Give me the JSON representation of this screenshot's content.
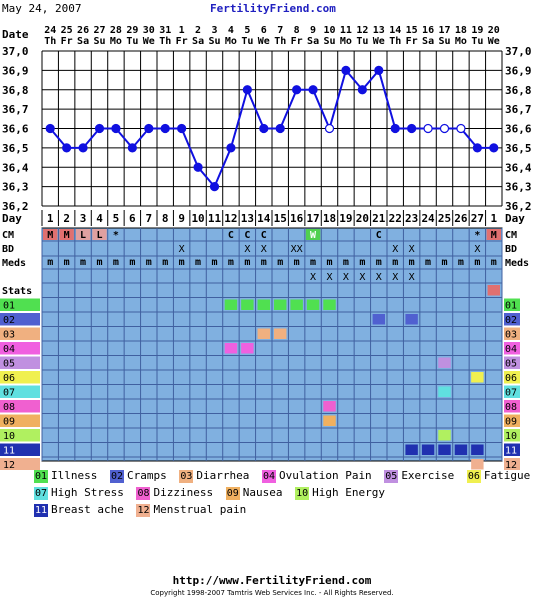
{
  "header": {
    "date": "May 24, 2007",
    "site": "FertilityFriend.com"
  },
  "footer": {
    "url": "http://www.FertilityFriend.com",
    "copyright": "Copyright 1998-2007 Tamtris Web Services Inc. - All Rights Reserved."
  },
  "row_labels": {
    "date": "Date",
    "day": "Day",
    "cm": "CM",
    "bd": "BD",
    "meds": "Meds",
    "stats": "Stats"
  },
  "colors": {
    "grid_bg": "#80b0e0",
    "line": "#1010e0",
    "point": "#1010e0"
  },
  "chart_data": {
    "type": "line",
    "title": "",
    "dates": [
      "24",
      "25",
      "26",
      "27",
      "28",
      "29",
      "30",
      "31",
      "1",
      "2",
      "3",
      "4",
      "5",
      "6",
      "7",
      "8",
      "9",
      "10",
      "11",
      "12",
      "13",
      "14",
      "15",
      "16",
      "17",
      "18",
      "19",
      "20"
    ],
    "weekdays": [
      "Th",
      "Fr",
      "Sa",
      "Su",
      "Mo",
      "Tu",
      "We",
      "Th",
      "Fr",
      "Sa",
      "Su",
      "Mo",
      "Tu",
      "We",
      "Th",
      "Fr",
      "Sa",
      "Su",
      "Mo",
      "Tu",
      "We",
      "Th",
      "Fr",
      "Sa",
      "Su",
      "Mo",
      "Tu",
      "We"
    ],
    "days": [
      "1",
      "2",
      "3",
      "4",
      "5",
      "6",
      "7",
      "8",
      "9",
      "10",
      "11",
      "12",
      "13",
      "14",
      "15",
      "16",
      "17",
      "18",
      "19",
      "20",
      "21",
      "22",
      "23",
      "24",
      "25",
      "26",
      "27",
      "1"
    ],
    "temps": [
      36.6,
      36.5,
      36.5,
      36.6,
      36.6,
      36.5,
      36.6,
      36.6,
      36.6,
      36.4,
      36.3,
      36.5,
      36.8,
      36.6,
      36.6,
      36.8,
      36.8,
      36.6,
      36.9,
      36.8,
      36.9,
      36.6,
      36.6,
      36.6,
      36.6,
      36.6,
      36.5,
      36.5
    ],
    "hollow": [
      17,
      23,
      24,
      25
    ],
    "ylim": [
      36.2,
      37.0
    ],
    "yticks": [
      "37,0",
      "36,9",
      "36,8",
      "36,7",
      "36,6",
      "36,5",
      "36,4",
      "36,3",
      "36,2"
    ],
    "cm": [
      "M",
      "M",
      "L",
      "L",
      "*",
      "",
      "",
      "",
      "",
      "",
      "",
      "C",
      "C",
      "C",
      "",
      "",
      "W",
      "",
      "",
      "",
      "C",
      "",
      "",
      "",
      "",
      "",
      "*",
      "M"
    ],
    "bd": [
      "",
      "",
      "",
      "",
      "",
      "",
      "",
      "",
      "X",
      "",
      "",
      "",
      "X",
      "X",
      "",
      "XX",
      "",
      "",
      "",
      "",
      "",
      "X",
      "X",
      "",
      "",
      "",
      "X",
      ""
    ],
    "meds_top": [
      "m",
      "m",
      "m",
      "m",
      "m",
      "m",
      "m",
      "m",
      "m",
      "m",
      "m",
      "m",
      "m",
      "m",
      "m",
      "m",
      "m",
      "m",
      "m",
      "m",
      "m",
      "m",
      "m",
      "m",
      "m",
      "m",
      "m",
      "m"
    ],
    "meds_bottom": [
      "",
      "",
      "",
      "",
      "",
      "",
      "",
      "",
      "",
      "",
      "",
      "",
      "",
      "",
      "",
      "",
      "X",
      "X",
      "X",
      "X",
      "X",
      "X",
      "X",
      "",
      "",
      "",
      "",
      ""
    ],
    "stats_cells": [
      {
        "row": 0,
        "days": [
          27
        ]
      },
      {
        "row": 1,
        "days": [
          11,
          12,
          13,
          14,
          15,
          16,
          17
        ]
      },
      {
        "row": 2,
        "days": [
          20,
          22
        ]
      },
      {
        "row": 3,
        "days": [
          13,
          14
        ]
      },
      {
        "row": 4,
        "days": [
          11,
          12
        ]
      },
      {
        "row": 5,
        "days": [
          24
        ]
      },
      {
        "row": 6,
        "days": [
          26
        ]
      },
      {
        "row": 7,
        "days": [
          24
        ]
      },
      {
        "row": 8,
        "days": [
          17
        ]
      },
      {
        "row": 9,
        "days": [
          17
        ]
      },
      {
        "row": 10,
        "days": [
          24
        ]
      },
      {
        "row": 11,
        "days": [
          22,
          23,
          24,
          25,
          26
        ]
      },
      {
        "row": 12,
        "days": [
          26
        ]
      }
    ],
    "stats_rows": [
      "",
      "01",
      "02",
      "03",
      "04",
      "05",
      "06",
      "07",
      "08",
      "09",
      "10",
      "11",
      "12"
    ],
    "stat_colors": [
      "#e07070",
      "#50e050",
      "#5060d0",
      "#f0b080",
      "#f060e0",
      "#c090e0",
      "#f0f050",
      "#60e0e0",
      "#f060d0",
      "#f0b060",
      "#b0f060",
      "#2030b0",
      "#f0b090"
    ],
    "legend": [
      {
        "code": "01",
        "label": "Illness"
      },
      {
        "code": "02",
        "label": "Cramps"
      },
      {
        "code": "03",
        "label": "Diarrhea"
      },
      {
        "code": "04",
        "label": "Ovulation Pain"
      },
      {
        "code": "05",
        "label": "Exercise"
      },
      {
        "code": "06",
        "label": "Fatigue"
      },
      {
        "code": "07",
        "label": "High Stress"
      },
      {
        "code": "08",
        "label": "Dizziness"
      },
      {
        "code": "09",
        "label": "Nausea"
      },
      {
        "code": "10",
        "label": "High Energy"
      },
      {
        "code": "11",
        "label": "Breast ache"
      },
      {
        "code": "12",
        "label": "Menstrual pain"
      }
    ]
  }
}
